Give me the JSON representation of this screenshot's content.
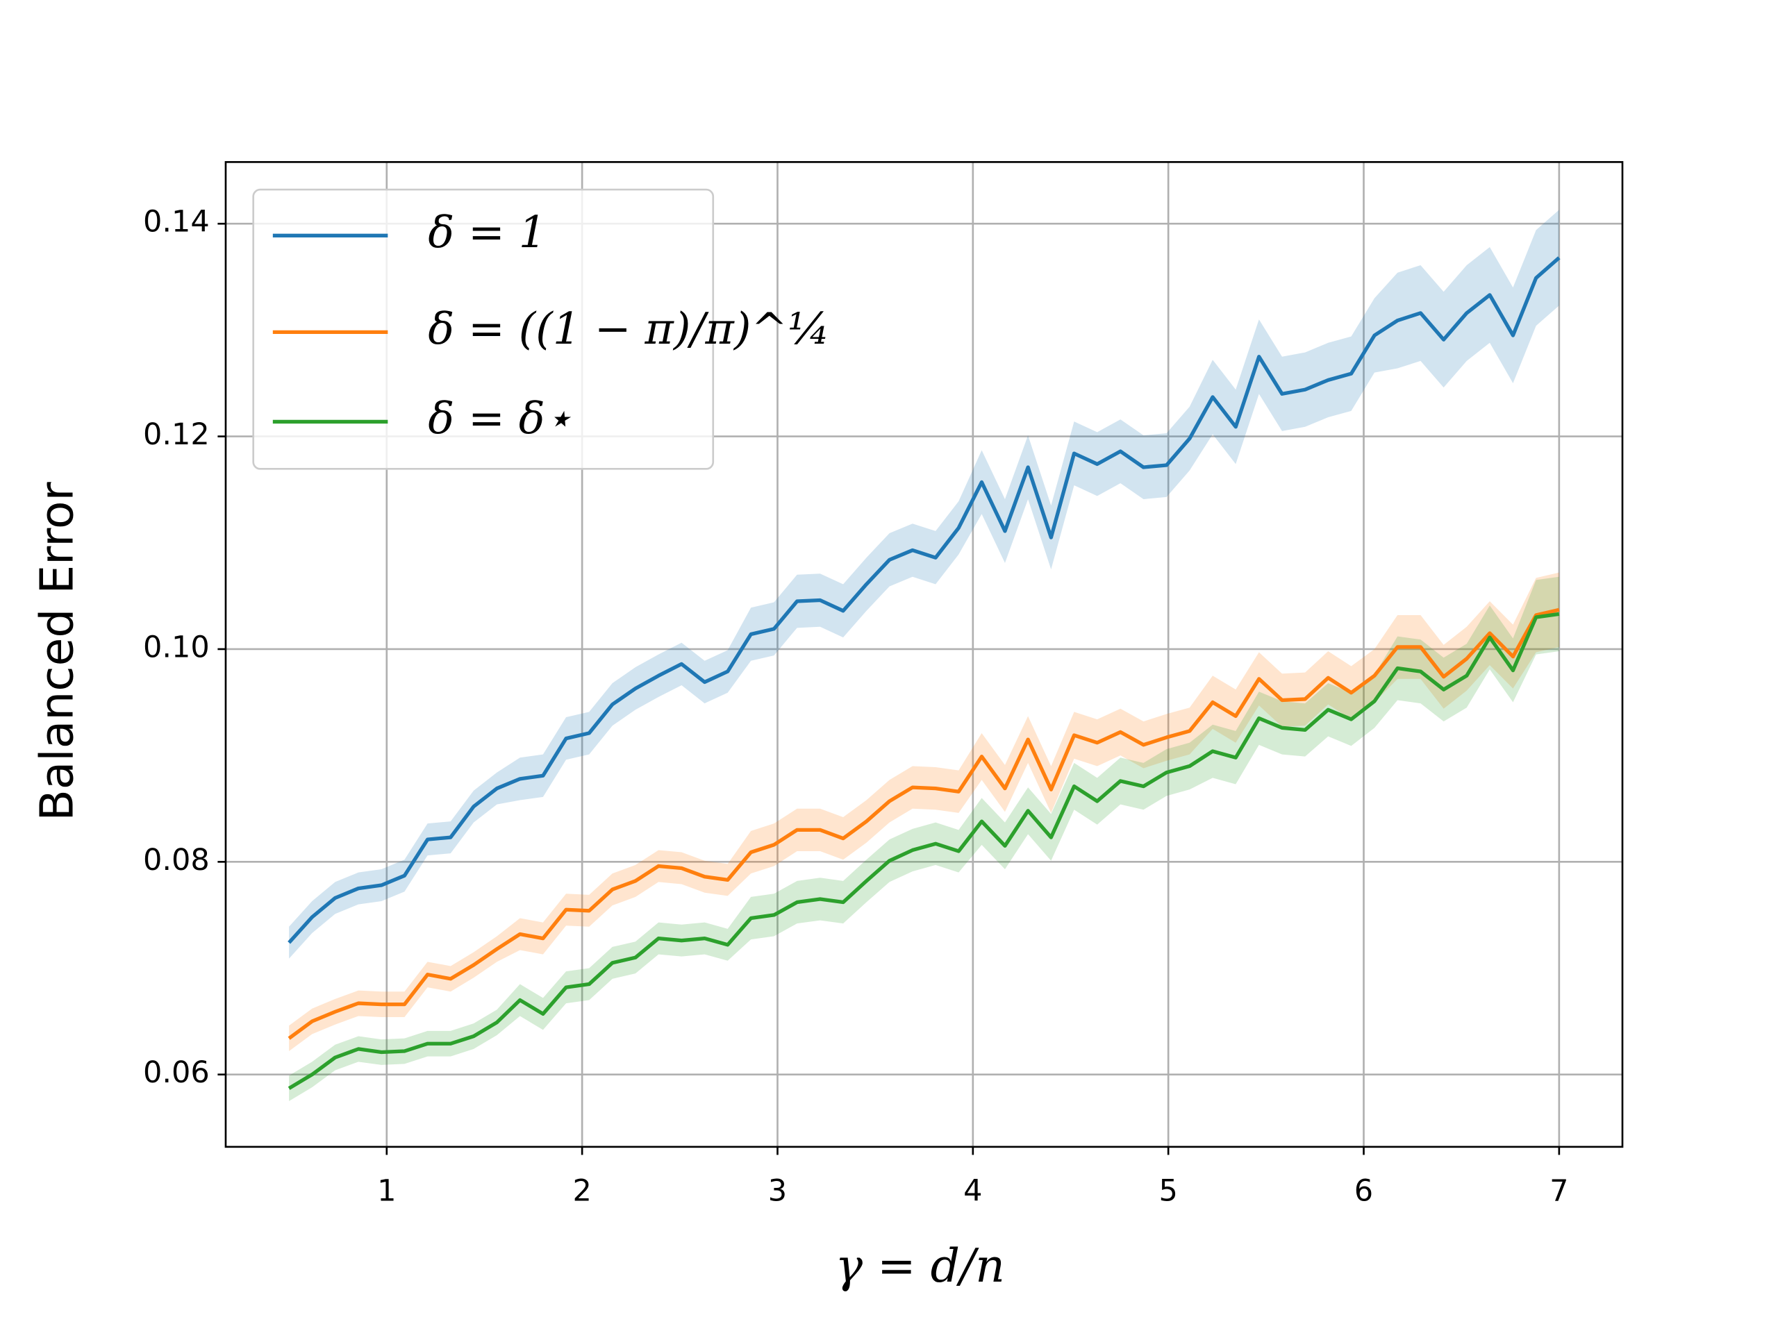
{
  "chart_data": {
    "type": "line",
    "xlabel": "γ = d/n",
    "ylabel": "Balanced Error",
    "xlim": [
      0.176,
      7.324
    ],
    "ylim": [
      0.0532,
      0.1458
    ],
    "xticks": [
      1,
      2,
      3,
      4,
      5,
      6,
      7
    ],
    "yticks": [
      0.06,
      0.08,
      0.1,
      0.12,
      0.14
    ],
    "ytick_labels": [
      "0.06",
      "0.08",
      "0.10",
      "0.12",
      "0.14"
    ],
    "grid": true,
    "legend": "upper left",
    "x": [
      0.5,
      0.618,
      0.736,
      0.855,
      0.973,
      1.091,
      1.209,
      1.327,
      1.445,
      1.564,
      1.682,
      1.8,
      1.918,
      2.036,
      2.155,
      2.273,
      2.391,
      2.509,
      2.627,
      2.745,
      2.864,
      2.982,
      3.1,
      3.218,
      3.336,
      3.455,
      3.573,
      3.691,
      3.809,
      3.927,
      4.045,
      4.164,
      4.282,
      4.4,
      4.518,
      4.636,
      4.755,
      4.873,
      4.991,
      5.109,
      5.227,
      5.345,
      5.464,
      5.582,
      5.7,
      5.818,
      5.936,
      6.055,
      6.173,
      6.291,
      6.409,
      6.527,
      6.645,
      6.764,
      6.882,
      7.0
    ],
    "series": [
      {
        "name": "δ = 1",
        "color": "#1f77b4",
        "values": [
          0.0724,
          0.0748,
          0.0766,
          0.0775,
          0.0778,
          0.0787,
          0.0821,
          0.0823,
          0.0852,
          0.0869,
          0.0878,
          0.0881,
          0.0916,
          0.0921,
          0.0948,
          0.0963,
          0.0975,
          0.0986,
          0.0969,
          0.0979,
          0.1014,
          0.1019,
          0.1045,
          0.1046,
          0.1036,
          0.1061,
          0.1084,
          0.1093,
          0.1086,
          0.1114,
          0.1157,
          0.1111,
          0.1171,
          0.1105,
          0.1184,
          0.1174,
          0.1186,
          0.1171,
          0.1173,
          0.1198,
          0.1237,
          0.1209,
          0.1275,
          0.124,
          0.1244,
          0.1253,
          0.1259,
          0.1295,
          0.1309,
          0.1316,
          0.1291,
          0.1316,
          0.1333,
          0.1295,
          0.1349,
          0.1368
        ],
        "errors": [
          0.0015,
          0.0015,
          0.0015,
          0.0015,
          0.0015,
          0.0015,
          0.0015,
          0.0015,
          0.0015,
          0.0015,
          0.002,
          0.002,
          0.002,
          0.002,
          0.002,
          0.002,
          0.002,
          0.002,
          0.002,
          0.002,
          0.0025,
          0.0025,
          0.0025,
          0.0025,
          0.0025,
          0.0025,
          0.0025,
          0.0025,
          0.0025,
          0.0025,
          0.003,
          0.003,
          0.003,
          0.003,
          0.003,
          0.003,
          0.003,
          0.003,
          0.003,
          0.003,
          0.0035,
          0.0035,
          0.0035,
          0.0035,
          0.0035,
          0.0035,
          0.0035,
          0.0035,
          0.0045,
          0.0045,
          0.0045,
          0.0045,
          0.0045,
          0.0045,
          0.0045,
          0.0045
        ]
      },
      {
        "name": "δ = ((1 − π)/π)^¼",
        "color": "#ff7f0e",
        "values": [
          0.0634,
          0.065,
          0.0659,
          0.0667,
          0.0666,
          0.0666,
          0.0694,
          0.069,
          0.0703,
          0.0718,
          0.0732,
          0.0728,
          0.0755,
          0.0754,
          0.0774,
          0.0782,
          0.0796,
          0.0794,
          0.0786,
          0.0783,
          0.0809,
          0.0816,
          0.083,
          0.083,
          0.0822,
          0.0838,
          0.0857,
          0.087,
          0.0869,
          0.0866,
          0.0899,
          0.0869,
          0.0915,
          0.0868,
          0.0919,
          0.0912,
          0.0922,
          0.091,
          0.0917,
          0.0923,
          0.095,
          0.0937,
          0.0972,
          0.0952,
          0.0953,
          0.0973,
          0.0959,
          0.0975,
          0.1002,
          0.1002,
          0.0974,
          0.0991,
          0.1015,
          0.0993,
          0.1032,
          0.1037
        ],
        "errors": [
          0.0012,
          0.0012,
          0.0012,
          0.0012,
          0.0012,
          0.0012,
          0.0012,
          0.0012,
          0.0012,
          0.0012,
          0.0015,
          0.0015,
          0.0015,
          0.0015,
          0.0015,
          0.0015,
          0.0015,
          0.0015,
          0.0015,
          0.0015,
          0.002,
          0.002,
          0.002,
          0.002,
          0.002,
          0.002,
          0.002,
          0.002,
          0.002,
          0.002,
          0.0022,
          0.0022,
          0.0022,
          0.0022,
          0.0022,
          0.0022,
          0.0022,
          0.0022,
          0.0022,
          0.0022,
          0.0025,
          0.0025,
          0.0025,
          0.0025,
          0.0025,
          0.0025,
          0.0025,
          0.0025,
          0.003,
          0.003,
          0.003,
          0.003,
          0.003,
          0.003,
          0.0035,
          0.0035
        ]
      },
      {
        "name": "δ = δ⋆",
        "color": "#2ca02c",
        "values": [
          0.0587,
          0.06,
          0.0616,
          0.0624,
          0.0621,
          0.0622,
          0.0629,
          0.0629,
          0.0636,
          0.0649,
          0.067,
          0.0657,
          0.0682,
          0.0685,
          0.0705,
          0.071,
          0.0728,
          0.0726,
          0.0728,
          0.0722,
          0.0747,
          0.075,
          0.0762,
          0.0765,
          0.0762,
          0.0782,
          0.0801,
          0.0811,
          0.0817,
          0.081,
          0.0838,
          0.0815,
          0.0848,
          0.0823,
          0.0871,
          0.0857,
          0.0876,
          0.0871,
          0.0884,
          0.089,
          0.0904,
          0.0898,
          0.0935,
          0.0926,
          0.0924,
          0.0943,
          0.0934,
          0.0951,
          0.0982,
          0.0979,
          0.0962,
          0.0975,
          0.1011,
          0.098,
          0.103,
          0.1033
        ],
        "errors": [
          0.0012,
          0.0012,
          0.0012,
          0.0012,
          0.0012,
          0.0012,
          0.0012,
          0.0012,
          0.0012,
          0.0012,
          0.0015,
          0.0015,
          0.0015,
          0.0015,
          0.0015,
          0.0015,
          0.0015,
          0.0015,
          0.0015,
          0.0015,
          0.002,
          0.002,
          0.002,
          0.002,
          0.002,
          0.002,
          0.002,
          0.002,
          0.002,
          0.002,
          0.0022,
          0.0022,
          0.0022,
          0.0022,
          0.0022,
          0.0022,
          0.0022,
          0.0022,
          0.0022,
          0.0022,
          0.0025,
          0.0025,
          0.0025,
          0.0025,
          0.0025,
          0.0025,
          0.0025,
          0.0025,
          0.003,
          0.003,
          0.003,
          0.003,
          0.003,
          0.003,
          0.0035,
          0.0035
        ]
      }
    ]
  }
}
